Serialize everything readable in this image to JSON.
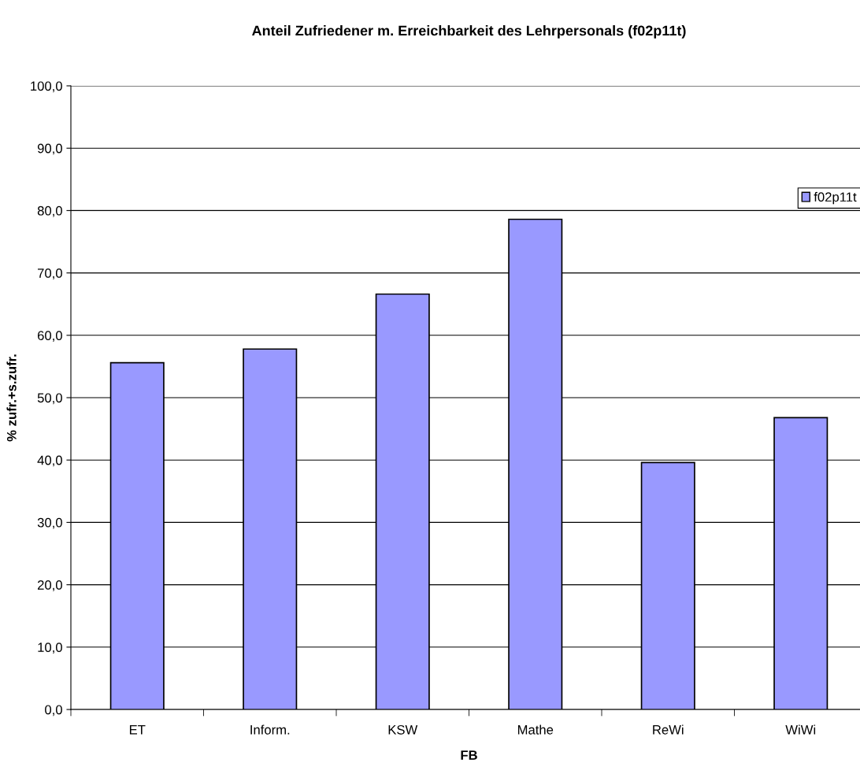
{
  "chart_data": {
    "type": "bar",
    "title": "Anteil Zufriedener m. Erreichbarkeit des Lehrpersonals (f02p11t)",
    "xlabel": "FB",
    "ylabel": "% zufr.+s.zufr.",
    "categories": [
      "ET",
      "Inform.",
      "KSW",
      "Mathe",
      "ReWi",
      "WiWi"
    ],
    "series": [
      {
        "name": "f02p11t",
        "color": "#9999ff",
        "values": [
          55.6,
          57.8,
          66.6,
          78.6,
          39.6,
          46.8
        ]
      }
    ],
    "ylim": [
      0,
      100
    ],
    "yticks": [
      {
        "value": 0,
        "label": "0,0"
      },
      {
        "value": 10,
        "label": "10,0"
      },
      {
        "value": 20,
        "label": "20,0"
      },
      {
        "value": 30,
        "label": "30,0"
      },
      {
        "value": 40,
        "label": "40,0"
      },
      {
        "value": 50,
        "label": "50,0"
      },
      {
        "value": 60,
        "label": "60,0"
      },
      {
        "value": 70,
        "label": "70,0"
      },
      {
        "value": 80,
        "label": "80,0"
      },
      {
        "value": 90,
        "label": "90,0"
      },
      {
        "value": 100,
        "label": "100,0"
      }
    ],
    "grid": "y",
    "legend": "right"
  }
}
